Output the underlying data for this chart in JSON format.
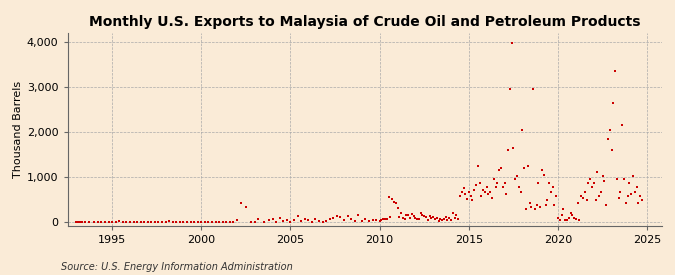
{
  "title": "Monthly U.S. Exports to Malaysia of Crude Oil and Petroleum Products",
  "ylabel": "Thousand Barrels",
  "source": "Source: U.S. Energy Information Administration",
  "bg_color": "#faebd7",
  "marker_color": "#cc0000",
  "marker": "s",
  "marker_size": 4,
  "xlim": [
    1992.5,
    2025.8
  ],
  "ylim": [
    -80,
    4200
  ],
  "yticks": [
    0,
    1000,
    2000,
    3000,
    4000
  ],
  "ytick_labels": [
    "0",
    "1,000",
    "2,000",
    "3,000",
    "4,000"
  ],
  "xticks": [
    1995,
    2000,
    2005,
    2010,
    2015,
    2020,
    2025
  ],
  "grid_color": "#aaaaaa",
  "title_fontsize": 10,
  "label_fontsize": 8,
  "tick_fontsize": 8,
  "source_fontsize": 7,
  "data": [
    [
      1993.0,
      0
    ],
    [
      1993.1,
      0
    ],
    [
      1993.2,
      0
    ],
    [
      1993.3,
      0
    ],
    [
      1993.5,
      3
    ],
    [
      1993.7,
      0
    ],
    [
      1994.0,
      0
    ],
    [
      1994.2,
      8
    ],
    [
      1994.4,
      0
    ],
    [
      1994.6,
      0
    ],
    [
      1994.8,
      0
    ],
    [
      1995.0,
      0
    ],
    [
      1995.2,
      0
    ],
    [
      1995.4,
      10
    ],
    [
      1995.6,
      0
    ],
    [
      1995.8,
      3
    ],
    [
      1996.0,
      0
    ],
    [
      1996.2,
      5
    ],
    [
      1996.4,
      0
    ],
    [
      1996.6,
      0
    ],
    [
      1996.8,
      8
    ],
    [
      1997.0,
      0
    ],
    [
      1997.2,
      3
    ],
    [
      1997.4,
      0
    ],
    [
      1997.6,
      0
    ],
    [
      1997.8,
      0
    ],
    [
      1998.0,
      0
    ],
    [
      1998.2,
      12
    ],
    [
      1998.4,
      0
    ],
    [
      1998.6,
      3
    ],
    [
      1998.8,
      0
    ],
    [
      1999.0,
      0
    ],
    [
      1999.2,
      0
    ],
    [
      1999.4,
      8
    ],
    [
      1999.6,
      0
    ],
    [
      1999.8,
      0
    ],
    [
      2000.0,
      0
    ],
    [
      2000.2,
      3
    ],
    [
      2000.4,
      0
    ],
    [
      2000.6,
      0
    ],
    [
      2000.8,
      0
    ],
    [
      2001.0,
      0
    ],
    [
      2001.2,
      0
    ],
    [
      2001.4,
      3
    ],
    [
      2001.6,
      0
    ],
    [
      2001.8,
      0
    ],
    [
      2002.0,
      40
    ],
    [
      2002.2,
      420
    ],
    [
      2002.5,
      340
    ],
    [
      2002.8,
      0
    ],
    [
      2003.0,
      3
    ],
    [
      2003.2,
      55
    ],
    [
      2003.5,
      8
    ],
    [
      2003.8,
      50
    ],
    [
      2004.0,
      75
    ],
    [
      2004.2,
      8
    ],
    [
      2004.4,
      95
    ],
    [
      2004.6,
      12
    ],
    [
      2004.8,
      40
    ],
    [
      2005.0,
      8
    ],
    [
      2005.2,
      45
    ],
    [
      2005.4,
      125
    ],
    [
      2005.6,
      18
    ],
    [
      2005.8,
      75
    ],
    [
      2006.0,
      35
    ],
    [
      2006.2,
      8
    ],
    [
      2006.4,
      65
    ],
    [
      2006.6,
      25
    ],
    [
      2006.8,
      0
    ],
    [
      2007.0,
      18
    ],
    [
      2007.2,
      75
    ],
    [
      2007.4,
      85
    ],
    [
      2007.6,
      130
    ],
    [
      2007.8,
      105
    ],
    [
      2008.0,
      50
    ],
    [
      2008.2,
      140
    ],
    [
      2008.4,
      75
    ],
    [
      2008.6,
      25
    ],
    [
      2008.8,
      155
    ],
    [
      2009.0,
      25
    ],
    [
      2009.2,
      60
    ],
    [
      2009.4,
      12
    ],
    [
      2009.6,
      50
    ],
    [
      2009.8,
      45
    ],
    [
      2010.0,
      18
    ],
    [
      2010.1,
      35
    ],
    [
      2010.2,
      75
    ],
    [
      2010.3,
      55
    ],
    [
      2010.4,
      65
    ],
    [
      2010.5,
      550
    ],
    [
      2010.6,
      105
    ],
    [
      2010.7,
      500
    ],
    [
      2010.8,
      450
    ],
    [
      2010.9,
      430
    ],
    [
      2011.0,
      320
    ],
    [
      2011.1,
      115
    ],
    [
      2011.2,
      190
    ],
    [
      2011.3,
      95
    ],
    [
      2011.4,
      75
    ],
    [
      2011.5,
      145
    ],
    [
      2011.6,
      155
    ],
    [
      2011.7,
      85
    ],
    [
      2011.8,
      175
    ],
    [
      2011.9,
      125
    ],
    [
      2012.0,
      95
    ],
    [
      2012.1,
      55
    ],
    [
      2012.2,
      75
    ],
    [
      2012.3,
      190
    ],
    [
      2012.4,
      160
    ],
    [
      2012.5,
      125
    ],
    [
      2012.6,
      105
    ],
    [
      2012.7,
      45
    ],
    [
      2012.8,
      135
    ],
    [
      2012.9,
      85
    ],
    [
      2013.0,
      115
    ],
    [
      2013.1,
      75
    ],
    [
      2013.2,
      95
    ],
    [
      2013.3,
      25
    ],
    [
      2013.4,
      65
    ],
    [
      2013.5,
      45
    ],
    [
      2013.6,
      75
    ],
    [
      2013.7,
      115
    ],
    [
      2013.8,
      35
    ],
    [
      2013.9,
      85
    ],
    [
      2014.0,
      45
    ],
    [
      2014.1,
      190
    ],
    [
      2014.2,
      95
    ],
    [
      2014.3,
      145
    ],
    [
      2014.4,
      75
    ],
    [
      2014.5,
      580
    ],
    [
      2014.6,
      670
    ],
    [
      2014.7,
      750
    ],
    [
      2014.8,
      620
    ],
    [
      2014.9,
      520
    ],
    [
      2015.0,
      670
    ],
    [
      2015.1,
      580
    ],
    [
      2015.2,
      480
    ],
    [
      2015.3,
      720
    ],
    [
      2015.4,
      820
    ],
    [
      2015.5,
      1250
    ],
    [
      2015.6,
      860
    ],
    [
      2015.7,
      580
    ],
    [
      2015.8,
      720
    ],
    [
      2015.9,
      670
    ],
    [
      2016.0,
      770
    ],
    [
      2016.1,
      625
    ],
    [
      2016.2,
      670
    ],
    [
      2016.3,
      530
    ],
    [
      2016.4,
      960
    ],
    [
      2016.5,
      770
    ],
    [
      2016.6,
      860
    ],
    [
      2016.7,
      1150
    ],
    [
      2016.8,
      1200
    ],
    [
      2016.9,
      770
    ],
    [
      2017.0,
      860
    ],
    [
      2017.1,
      625
    ],
    [
      2017.2,
      1600
    ],
    [
      2017.3,
      2950
    ],
    [
      2017.4,
      3970
    ],
    [
      2017.5,
      1640
    ],
    [
      2017.6,
      960
    ],
    [
      2017.7,
      1010
    ],
    [
      2017.8,
      770
    ],
    [
      2017.9,
      670
    ],
    [
      2018.0,
      2050
    ],
    [
      2018.1,
      1200
    ],
    [
      2018.2,
      290
    ],
    [
      2018.3,
      1250
    ],
    [
      2018.4,
      430
    ],
    [
      2018.5,
      340
    ],
    [
      2018.6,
      2950
    ],
    [
      2018.7,
      290
    ],
    [
      2018.8,
      380
    ],
    [
      2018.9,
      860
    ],
    [
      2019.0,
      340
    ],
    [
      2019.1,
      1150
    ],
    [
      2019.2,
      1050
    ],
    [
      2019.3,
      380
    ],
    [
      2019.4,
      480
    ],
    [
      2019.5,
      860
    ],
    [
      2019.6,
      670
    ],
    [
      2019.7,
      770
    ],
    [
      2019.8,
      380
    ],
    [
      2019.9,
      580
    ],
    [
      2020.0,
      95
    ],
    [
      2020.1,
      45
    ],
    [
      2020.2,
      145
    ],
    [
      2020.3,
      290
    ],
    [
      2020.4,
      45
    ],
    [
      2020.5,
      45
    ],
    [
      2020.6,
      95
    ],
    [
      2020.7,
      190
    ],
    [
      2020.8,
      145
    ],
    [
      2020.9,
      95
    ],
    [
      2021.0,
      75
    ],
    [
      2021.1,
      430
    ],
    [
      2021.2,
      45
    ],
    [
      2021.3,
      580
    ],
    [
      2021.4,
      530
    ],
    [
      2021.5,
      670
    ],
    [
      2021.6,
      480
    ],
    [
      2021.7,
      860
    ],
    [
      2021.8,
      960
    ],
    [
      2021.9,
      770
    ],
    [
      2022.0,
      860
    ],
    [
      2022.1,
      480
    ],
    [
      2022.2,
      1100
    ],
    [
      2022.3,
      580
    ],
    [
      2022.4,
      670
    ],
    [
      2022.5,
      1010
    ],
    [
      2022.6,
      910
    ],
    [
      2022.7,
      380
    ],
    [
      2022.8,
      1850
    ],
    [
      2022.9,
      2050
    ],
    [
      2023.0,
      1600
    ],
    [
      2023.1,
      2650
    ],
    [
      2023.2,
      3350
    ],
    [
      2023.3,
      960
    ],
    [
      2023.4,
      530
    ],
    [
      2023.5,
      670
    ],
    [
      2023.6,
      2150
    ],
    [
      2023.7,
      960
    ],
    [
      2023.8,
      430
    ],
    [
      2023.9,
      580
    ],
    [
      2024.0,
      860
    ],
    [
      2024.1,
      625
    ],
    [
      2024.2,
      1010
    ],
    [
      2024.3,
      670
    ],
    [
      2024.4,
      770
    ],
    [
      2024.5,
      430
    ],
    [
      2024.6,
      580
    ],
    [
      2024.7,
      480
    ]
  ]
}
